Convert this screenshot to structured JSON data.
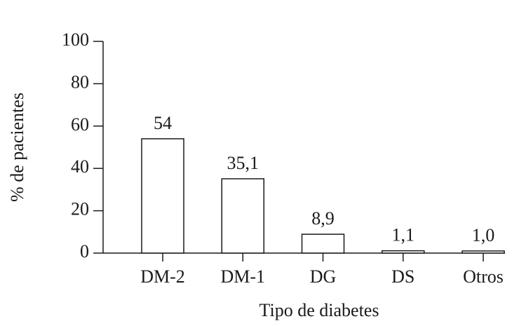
{
  "chart_data": {
    "type": "bar",
    "x_label": "Tipo de diabetes",
    "y_label": "% de pacientes",
    "categories": [
      "DM-2",
      "DM-1",
      "DG",
      "DS",
      "Otros"
    ],
    "values": [
      54,
      35.1,
      8.9,
      1.1,
      1.0
    ],
    "value_labels": [
      "54",
      "35,1",
      "8,9",
      "1,1",
      "1,0"
    ],
    "color": "#ffffff",
    "ylim": [
      0,
      100
    ],
    "yticks": [
      0,
      20,
      40,
      60,
      80,
      100
    ]
  }
}
